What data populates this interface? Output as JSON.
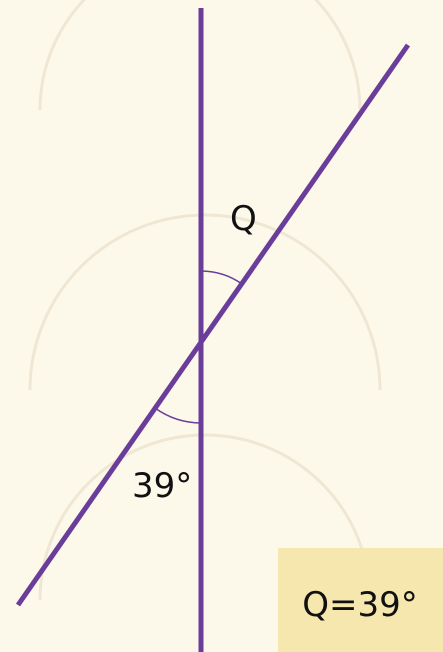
{
  "diagram": {
    "angle_unknown_label": "Q",
    "angle_given_label": "39°",
    "answer": "Q=39°"
  }
}
